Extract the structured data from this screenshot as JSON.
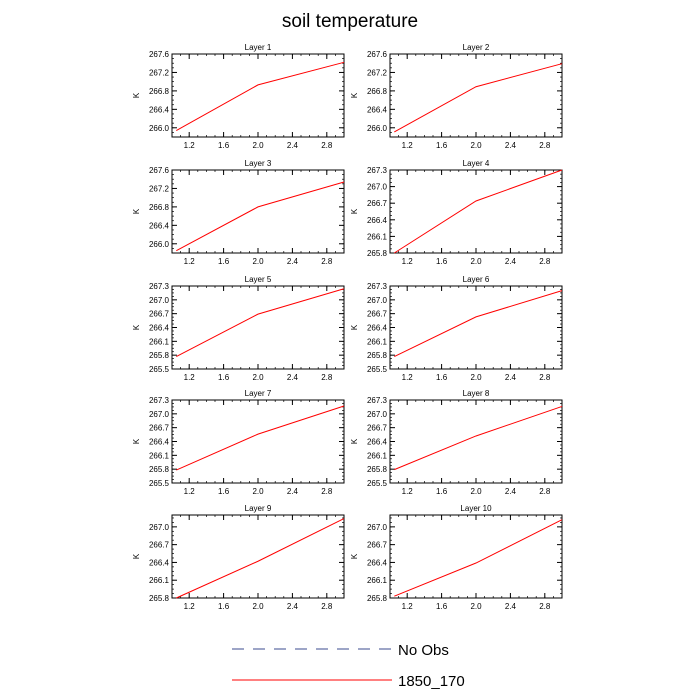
{
  "title": "soil temperature",
  "legend": [
    {
      "label": "No Obs",
      "color": "#3b4b8f",
      "dash": true
    },
    {
      "label": "1850_170",
      "color": "#ff0000",
      "dash": false
    }
  ],
  "chart_data": [
    {
      "type": "line",
      "title": "Layer 1",
      "ylabel": "K",
      "xlim": [
        1.0,
        3.0
      ],
      "ylim": [
        265.8,
        267.6
      ],
      "xticks": [
        "1.2",
        "1.6",
        "2.0",
        "2.4",
        "2.8"
      ],
      "yticks": [
        "266.0",
        "266.4",
        "266.8",
        "267.2",
        "267.6"
      ],
      "series": [
        {
          "x": [
            1.05,
            2.0,
            3.0
          ],
          "y": [
            265.94,
            266.93,
            267.42
          ],
          "color": "#ff0000"
        }
      ]
    },
    {
      "type": "line",
      "title": "Layer 2",
      "ylabel": "K",
      "xlim": [
        1.0,
        3.0
      ],
      "ylim": [
        265.8,
        267.6
      ],
      "xticks": [
        "1.2",
        "1.6",
        "2.0",
        "2.4",
        "2.8"
      ],
      "yticks": [
        "266.0",
        "266.4",
        "266.8",
        "267.2",
        "267.6"
      ],
      "series": [
        {
          "x": [
            1.05,
            2.0,
            3.0
          ],
          "y": [
            265.91,
            266.89,
            267.39
          ],
          "color": "#ff0000"
        }
      ]
    },
    {
      "type": "line",
      "title": "Layer 3",
      "ylabel": "K",
      "xlim": [
        1.0,
        3.0
      ],
      "ylim": [
        265.8,
        267.6
      ],
      "xticks": [
        "1.2",
        "1.6",
        "2.0",
        "2.4",
        "2.8"
      ],
      "yticks": [
        "266.0",
        "266.4",
        "266.8",
        "267.2",
        "267.6"
      ],
      "series": [
        {
          "x": [
            1.05,
            2.0,
            3.0
          ],
          "y": [
            265.85,
            266.8,
            267.34
          ],
          "color": "#ff0000"
        }
      ]
    },
    {
      "type": "line",
      "title": "Layer 4",
      "ylabel": "K",
      "xlim": [
        1.0,
        3.0
      ],
      "ylim": [
        265.8,
        267.3
      ],
      "xticks": [
        "1.2",
        "1.6",
        "2.0",
        "2.4",
        "2.8"
      ],
      "yticks": [
        "265.8",
        "266.1",
        "266.4",
        "266.7",
        "267.0",
        "267.3"
      ],
      "series": [
        {
          "x": [
            1.05,
            2.0,
            3.0
          ],
          "y": [
            265.8,
            266.74,
            267.3
          ],
          "color": "#ff0000"
        }
      ]
    },
    {
      "type": "line",
      "title": "Layer 5",
      "ylabel": "K",
      "xlim": [
        1.0,
        3.0
      ],
      "ylim": [
        265.5,
        267.3
      ],
      "xticks": [
        "1.2",
        "1.6",
        "2.0",
        "2.4",
        "2.8"
      ],
      "yticks": [
        "265.5",
        "265.8",
        "266.1",
        "266.4",
        "266.7",
        "267.0",
        "267.3"
      ],
      "series": [
        {
          "x": [
            1.05,
            2.0,
            3.0
          ],
          "y": [
            265.77,
            266.69,
            267.24
          ],
          "color": "#ff0000"
        }
      ]
    },
    {
      "type": "line",
      "title": "Layer 6",
      "ylabel": "K",
      "xlim": [
        1.0,
        3.0
      ],
      "ylim": [
        265.5,
        267.3
      ],
      "xticks": [
        "1.2",
        "1.6",
        "2.0",
        "2.4",
        "2.8"
      ],
      "yticks": [
        "265.5",
        "265.8",
        "266.1",
        "266.4",
        "266.7",
        "267.0",
        "267.3"
      ],
      "series": [
        {
          "x": [
            1.05,
            2.0,
            3.0
          ],
          "y": [
            265.77,
            266.63,
            267.2
          ],
          "color": "#ff0000"
        }
      ]
    },
    {
      "type": "line",
      "title": "Layer 7",
      "ylabel": "K",
      "xlim": [
        1.0,
        3.0
      ],
      "ylim": [
        265.5,
        267.3
      ],
      "xticks": [
        "1.2",
        "1.6",
        "2.0",
        "2.4",
        "2.8"
      ],
      "yticks": [
        "265.5",
        "265.8",
        "266.1",
        "266.4",
        "266.7",
        "267.0",
        "267.3"
      ],
      "series": [
        {
          "x": [
            1.05,
            2.0,
            3.0
          ],
          "y": [
            265.78,
            266.56,
            267.17
          ],
          "color": "#ff0000"
        }
      ]
    },
    {
      "type": "line",
      "title": "Layer 8",
      "ylabel": "K",
      "xlim": [
        1.0,
        3.0
      ],
      "ylim": [
        265.5,
        267.3
      ],
      "xticks": [
        "1.2",
        "1.6",
        "2.0",
        "2.4",
        "2.8"
      ],
      "yticks": [
        "265.5",
        "265.8",
        "266.1",
        "266.4",
        "266.7",
        "267.0",
        "267.3"
      ],
      "series": [
        {
          "x": [
            1.05,
            2.0,
            3.0
          ],
          "y": [
            265.79,
            266.52,
            267.16
          ],
          "color": "#ff0000"
        }
      ]
    },
    {
      "type": "line",
      "title": "Layer 9",
      "ylabel": "K",
      "xlim": [
        1.0,
        3.0
      ],
      "ylim": [
        265.8,
        267.2
      ],
      "xticks": [
        "1.2",
        "1.6",
        "2.0",
        "2.4",
        "2.8"
      ],
      "yticks": [
        "265.8",
        "266.1",
        "266.4",
        "266.7",
        "267.0"
      ],
      "series": [
        {
          "x": [
            1.05,
            2.0,
            3.0
          ],
          "y": [
            265.8,
            266.42,
            267.14
          ],
          "color": "#ff0000"
        }
      ]
    },
    {
      "type": "line",
      "title": "Layer 10",
      "ylabel": "K",
      "xlim": [
        1.0,
        3.0
      ],
      "ylim": [
        265.8,
        267.2
      ],
      "xticks": [
        "1.2",
        "1.6",
        "2.0",
        "2.4",
        "2.8"
      ],
      "yticks": [
        "265.8",
        "266.1",
        "266.4",
        "266.7",
        "267.0"
      ],
      "series": [
        {
          "x": [
            1.05,
            2.0,
            3.0
          ],
          "y": [
            265.83,
            266.39,
            267.12
          ],
          "color": "#ff0000"
        }
      ]
    }
  ]
}
